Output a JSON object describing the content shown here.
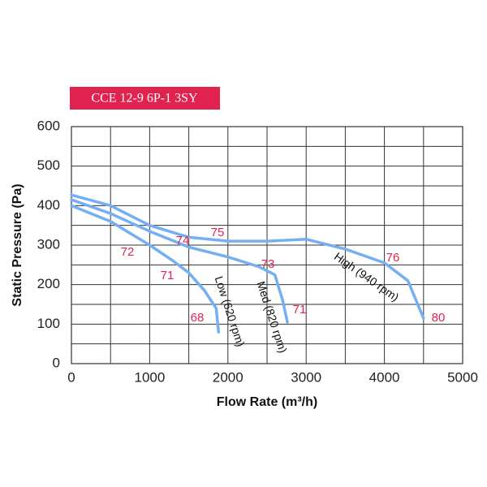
{
  "chart_data": {
    "type": "line",
    "title": "CCE 12-9 6P-1 3SY",
    "x_label": "Flow Rate (m³/h)",
    "y_label": "Static Pressure (Pa)",
    "xlim": [
      0,
      5000
    ],
    "ylim": [
      0,
      600
    ],
    "xticks": [
      0,
      1000,
      2000,
      3000,
      4000,
      5000
    ],
    "yticks": [
      0,
      100,
      200,
      300,
      400,
      500,
      600
    ],
    "minor_xticks": [
      500,
      1500,
      2500,
      3500,
      4500
    ],
    "minor_yticks": [
      50,
      150,
      250,
      350,
      450,
      550
    ],
    "grid": true,
    "series": [
      {
        "name": "Low (620 rpm)",
        "color": "#74aef3",
        "x": [
          0,
          500,
          1000,
          1300,
          1500,
          1700,
          1850,
          1880
        ],
        "values": [
          400,
          360,
          300,
          260,
          230,
          185,
          140,
          80
        ]
      },
      {
        "name": "Med (820 rpm)",
        "color": "#74aef3",
        "x": [
          0,
          500,
          1000,
          1500,
          2000,
          2400,
          2600,
          2700,
          2760
        ],
        "values": [
          415,
          380,
          335,
          295,
          270,
          245,
          225,
          160,
          105
        ]
      },
      {
        "name": "High (940 rpm)",
        "color": "#74aef3",
        "x": [
          0,
          500,
          1000,
          1500,
          2000,
          2500,
          3000,
          3500,
          4000,
          4300,
          4500
        ],
        "values": [
          427,
          400,
          350,
          320,
          310,
          310,
          315,
          290,
          255,
          210,
          115
        ]
      }
    ],
    "annotations": [
      "72",
      "71",
      "68",
      "74",
      "73",
      "71",
      "75",
      "76",
      "80"
    ]
  }
}
